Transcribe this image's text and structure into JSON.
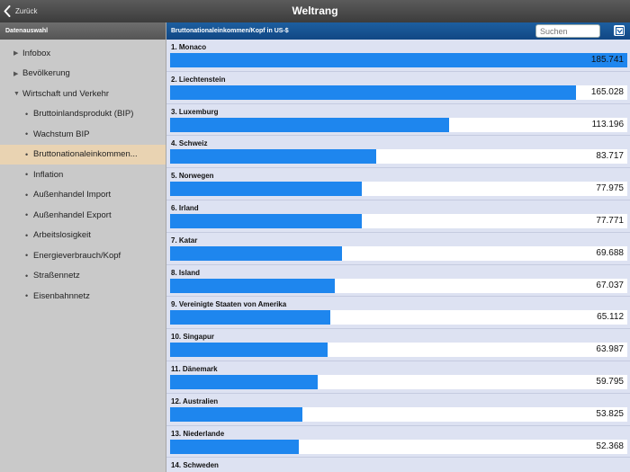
{
  "navbar": {
    "back_label": "Zurück",
    "title": "Weltrang"
  },
  "sidebar": {
    "header": "Datenauswahl",
    "items": [
      {
        "label": "Infobox",
        "level": 0,
        "marker": "collapsed"
      },
      {
        "label": "Bevölkerung",
        "level": 0,
        "marker": "collapsed"
      },
      {
        "label": "Wirtschaft und Verkehr",
        "level": 0,
        "marker": "expanded"
      },
      {
        "label": "Bruttoinlandsprodukt (BIP)",
        "level": 1
      },
      {
        "label": "Wachstum BIP",
        "level": 1
      },
      {
        "label": "Bruttonationaleinkommen...",
        "level": 1,
        "selected": true
      },
      {
        "label": "Inflation",
        "level": 1
      },
      {
        "label": "Außenhandel Import",
        "level": 1
      },
      {
        "label": "Außenhandel Export",
        "level": 1
      },
      {
        "label": "Arbeitslosigkeit",
        "level": 1
      },
      {
        "label": "Energieverbrauch/Kopf",
        "level": 1
      },
      {
        "label": "Straßennetz",
        "level": 1
      },
      {
        "label": "Eisenbahnnetz",
        "level": 1
      }
    ]
  },
  "content": {
    "header_title": "Bruttonationaleinkommen/Kopf in US-$",
    "search_placeholder": "Suchen",
    "rows": [
      {
        "label": "1. Monaco",
        "value_text": "185.741",
        "value": 185741
      },
      {
        "label": "2. Liechtenstein",
        "value_text": "165.028",
        "value": 165028
      },
      {
        "label": "3. Luxemburg",
        "value_text": "113.196",
        "value": 113196
      },
      {
        "label": "4. Schweiz",
        "value_text": "83.717",
        "value": 83717
      },
      {
        "label": "5. Norwegen",
        "value_text": "77.975",
        "value": 77975
      },
      {
        "label": "6. Irland",
        "value_text": "77.771",
        "value": 77771
      },
      {
        "label": "7. Katar",
        "value_text": "69.688",
        "value": 69688
      },
      {
        "label": "8. Island",
        "value_text": "67.037",
        "value": 67037
      },
      {
        "label": "9. Vereinigte Staaten von Amerika",
        "value_text": "65.112",
        "value": 65112
      },
      {
        "label": "10. Singapur",
        "value_text": "63.987",
        "value": 63987
      },
      {
        "label": "11. Dänemark",
        "value_text": "59.795",
        "value": 59795
      },
      {
        "label": "12. Australien",
        "value_text": "53.825",
        "value": 53825
      },
      {
        "label": "13. Niederlande",
        "value_text": "52.368",
        "value": 52368
      },
      {
        "label": "14. Schweden",
        "value_text": "",
        "value": null
      }
    ]
  },
  "colors": {
    "bar": "#1e86ee",
    "selected": "#e9d3b2",
    "header_blue": "#1559a0"
  }
}
